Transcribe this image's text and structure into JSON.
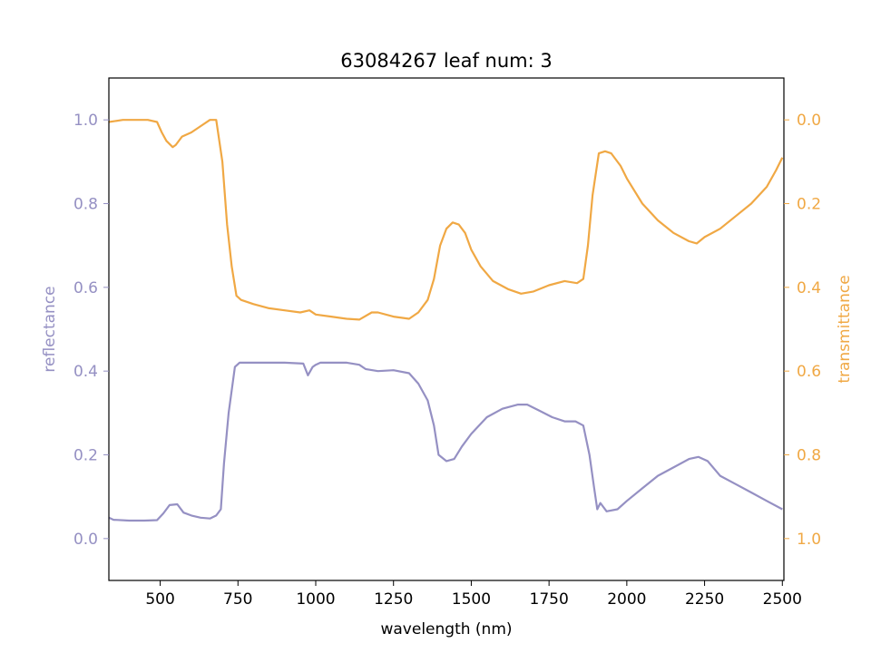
{
  "chart_data": {
    "type": "line",
    "title": "63084267 leaf num: 3",
    "xlabel": "wavelength (nm)",
    "ylabel_left": "reflectance",
    "ylabel_right": "transmittance",
    "xlim": [
      335,
      2505
    ],
    "ylim_left": [
      -0.1,
      1.1
    ],
    "ylim_right_inverted": [
      1.1,
      -0.1
    ],
    "x_ticks": [
      500,
      750,
      1000,
      1250,
      1500,
      1750,
      2000,
      2250,
      2500
    ],
    "y_left_ticks": [
      0.0,
      0.2,
      0.4,
      0.6,
      0.8,
      1.0
    ],
    "y_right_ticks": [
      0.0,
      0.2,
      0.4,
      0.6,
      0.8,
      1.0
    ],
    "grid": false,
    "legend": "none",
    "colors": {
      "reflectance": "#9590c3",
      "transmittance": "#f0a844",
      "axis": "#000000"
    },
    "series": [
      {
        "name": "reflectance",
        "axis": "left",
        "x": [
          335,
          350,
          400,
          450,
          490,
          510,
          530,
          555,
          575,
          600,
          630,
          660,
          680,
          695,
          705,
          720,
          740,
          755,
          780,
          850,
          900,
          960,
          975,
          990,
          1000,
          1015,
          1030,
          1100,
          1140,
          1160,
          1200,
          1250,
          1300,
          1330,
          1360,
          1380,
          1395,
          1420,
          1445,
          1470,
          1500,
          1550,
          1600,
          1650,
          1680,
          1720,
          1760,
          1800,
          1835,
          1860,
          1880,
          1895,
          1905,
          1915,
          1935,
          1970,
          2000,
          2050,
          2100,
          2150,
          2200,
          2230,
          2260,
          2300,
          2350,
          2400,
          2450,
          2500
        ],
        "y": [
          0.05,
          0.045,
          0.043,
          0.043,
          0.044,
          0.06,
          0.08,
          0.082,
          0.062,
          0.055,
          0.05,
          0.048,
          0.055,
          0.07,
          0.18,
          0.3,
          0.41,
          0.42,
          0.42,
          0.42,
          0.42,
          0.418,
          0.39,
          0.41,
          0.415,
          0.42,
          0.42,
          0.42,
          0.415,
          0.405,
          0.4,
          0.402,
          0.395,
          0.37,
          0.33,
          0.27,
          0.2,
          0.185,
          0.19,
          0.22,
          0.25,
          0.29,
          0.31,
          0.32,
          0.32,
          0.305,
          0.29,
          0.28,
          0.28,
          0.27,
          0.2,
          0.12,
          0.07,
          0.085,
          0.065,
          0.07,
          0.09,
          0.12,
          0.15,
          0.17,
          0.19,
          0.195,
          0.185,
          0.15,
          0.13,
          0.11,
          0.09,
          0.07
        ]
      },
      {
        "name": "transmittance",
        "axis": "right",
        "x": [
          335,
          380,
          420,
          460,
          490,
          505,
          520,
          540,
          550,
          570,
          600,
          630,
          660,
          680,
          700,
          715,
          730,
          745,
          760,
          800,
          850,
          900,
          950,
          980,
          1000,
          1050,
          1100,
          1140,
          1180,
          1200,
          1250,
          1300,
          1330,
          1360,
          1380,
          1400,
          1420,
          1440,
          1460,
          1480,
          1500,
          1530,
          1570,
          1620,
          1660,
          1700,
          1750,
          1800,
          1840,
          1860,
          1875,
          1890,
          1910,
          1930,
          1950,
          1980,
          2000,
          2050,
          2100,
          2150,
          2200,
          2225,
          2250,
          2300,
          2350,
          2400,
          2450,
          2480,
          2500
        ],
        "y": [
          0.005,
          0.0,
          0.0,
          0.0,
          0.005,
          0.03,
          0.05,
          0.065,
          0.06,
          0.04,
          0.03,
          0.015,
          0.0,
          0.0,
          0.1,
          0.25,
          0.35,
          0.42,
          0.43,
          0.44,
          0.45,
          0.455,
          0.46,
          0.455,
          0.465,
          0.47,
          0.475,
          0.477,
          0.46,
          0.46,
          0.47,
          0.475,
          0.46,
          0.43,
          0.38,
          0.3,
          0.26,
          0.245,
          0.25,
          0.27,
          0.31,
          0.35,
          0.385,
          0.405,
          0.415,
          0.41,
          0.395,
          0.385,
          0.39,
          0.38,
          0.3,
          0.18,
          0.08,
          0.075,
          0.08,
          0.11,
          0.14,
          0.2,
          0.24,
          0.27,
          0.29,
          0.295,
          0.28,
          0.26,
          0.23,
          0.2,
          0.16,
          0.12,
          0.09
        ]
      }
    ]
  }
}
